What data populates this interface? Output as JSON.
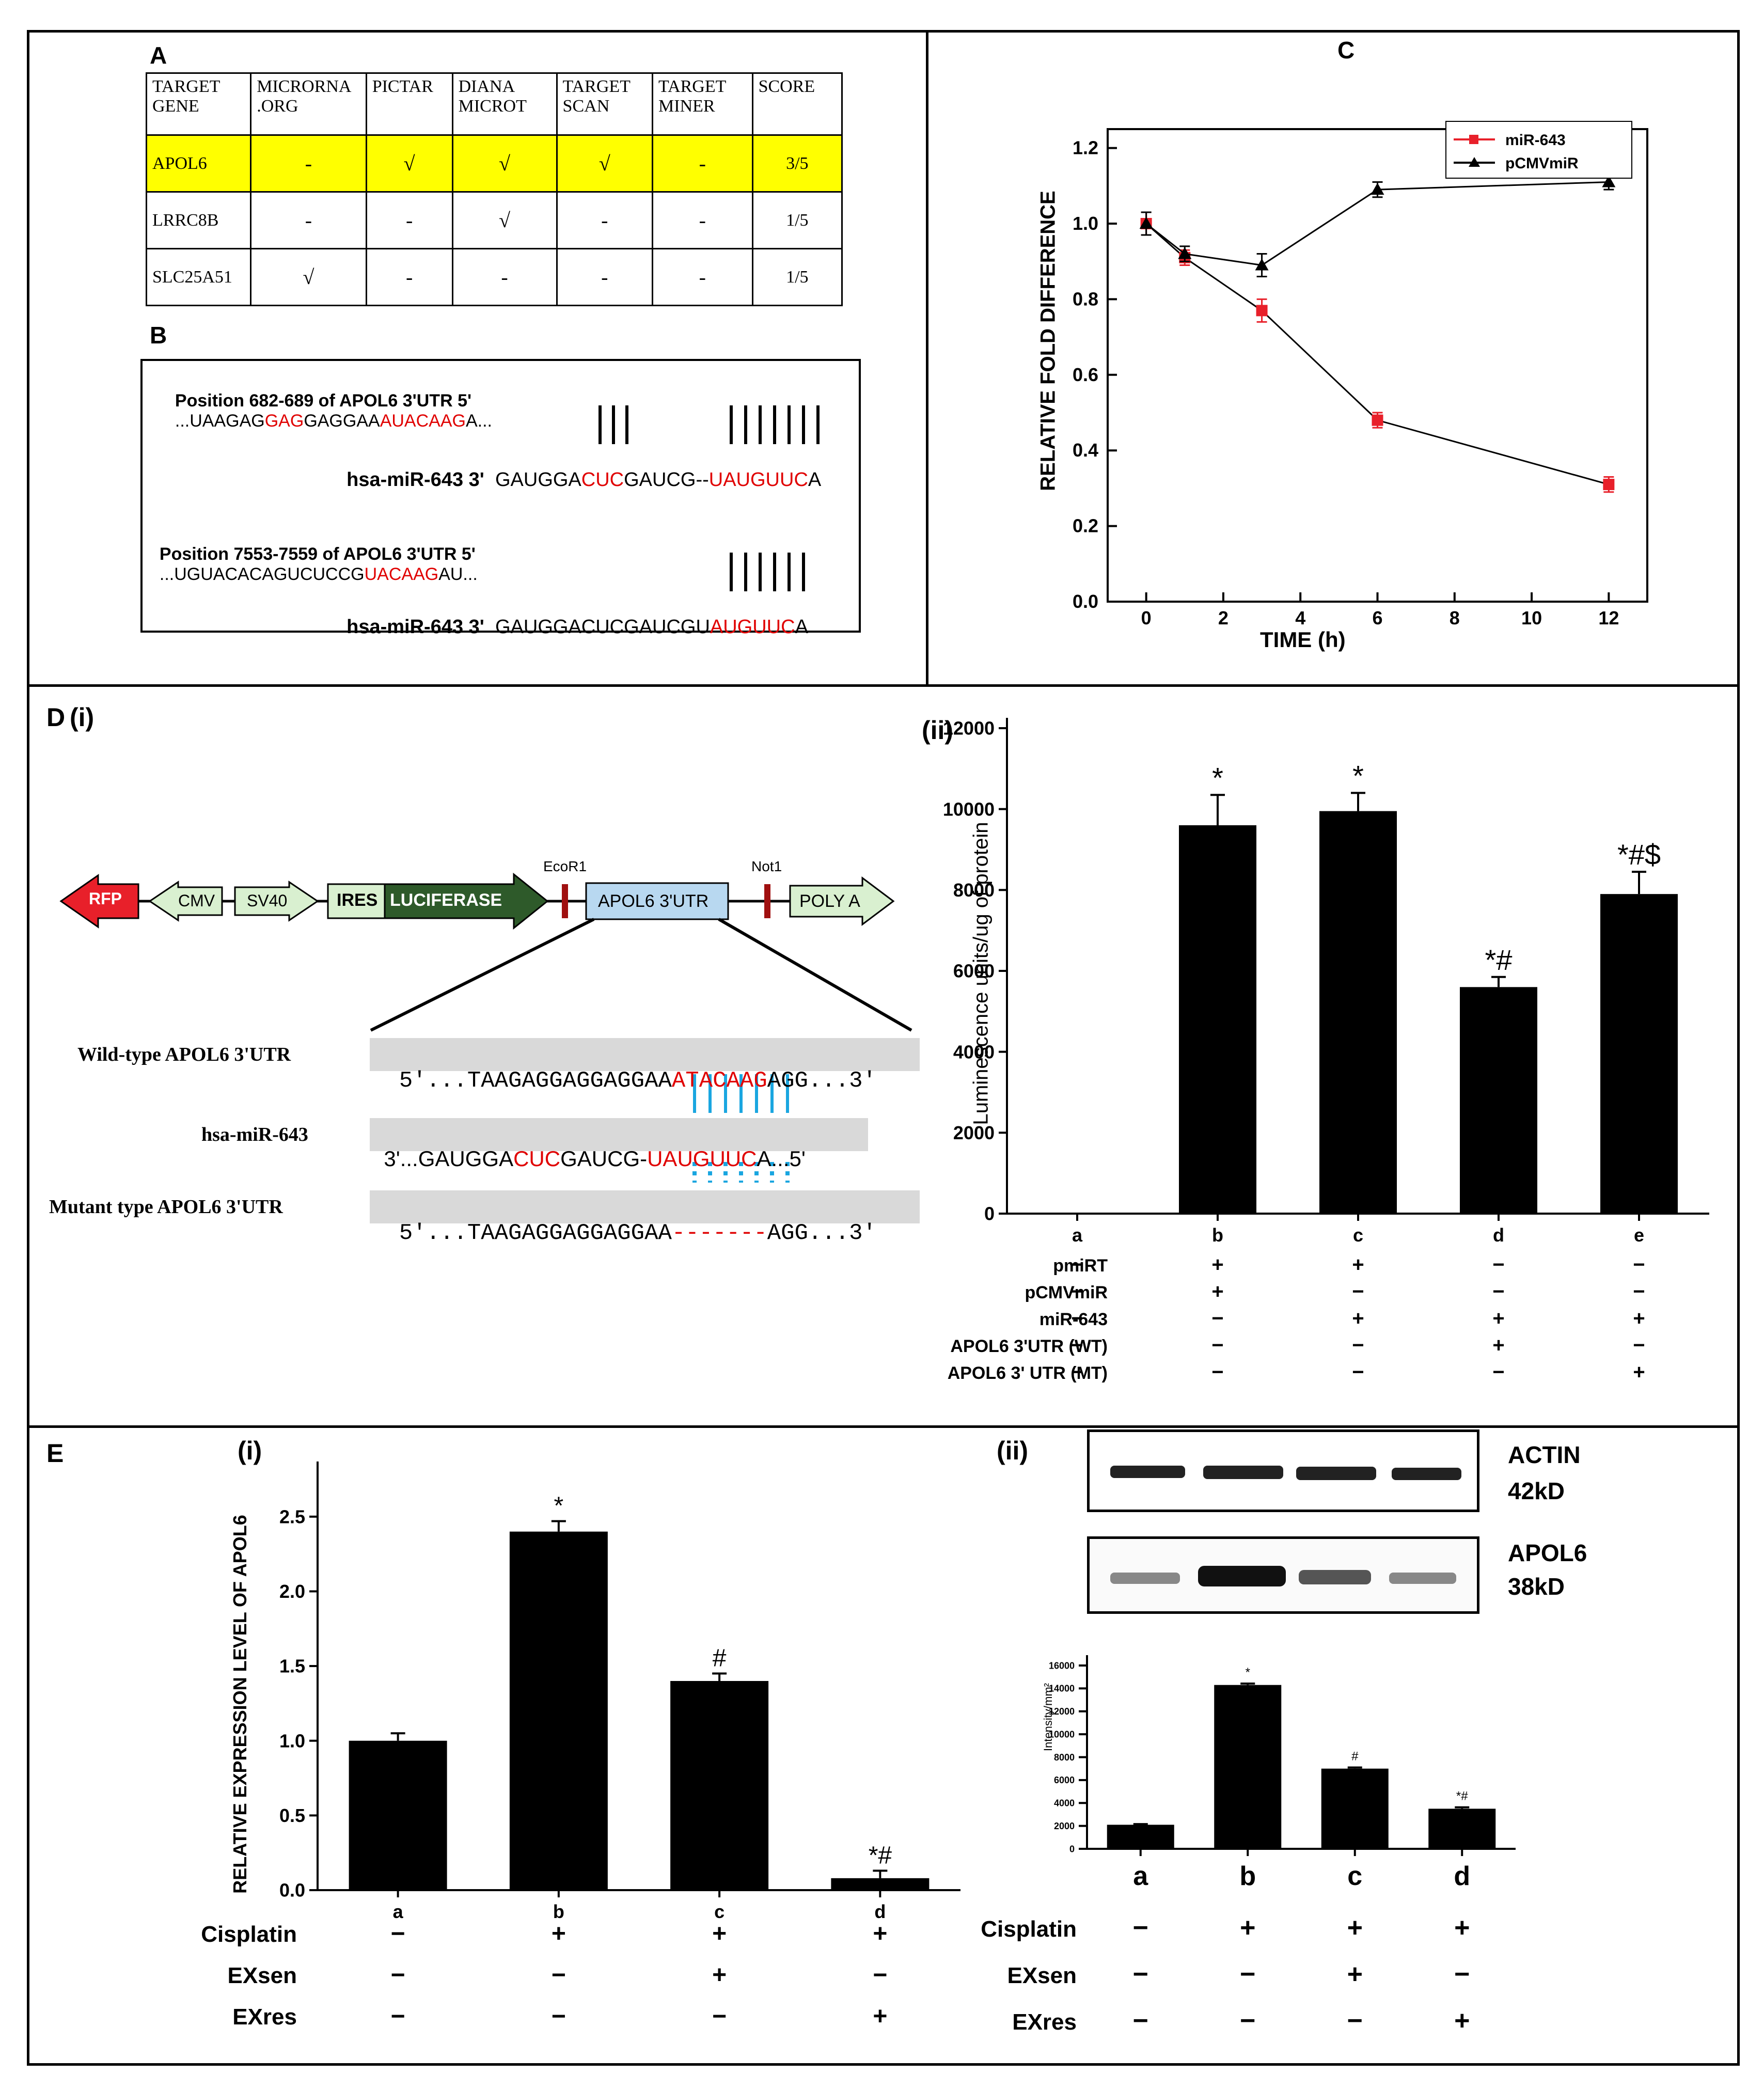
{
  "panel_labels": {
    "A": "A",
    "B": "B",
    "C": "C",
    "D": "D",
    "Di": "(i)",
    "Dii": "(ii)",
    "E": "E",
    "Ei": "(i)",
    "Eii": "(ii)"
  },
  "table_A": {
    "headers": [
      "TARGET GENE",
      "MICRORNA .ORG",
      "PICTAR",
      "DIANA MICROT",
      "TARGET SCAN",
      "TARGET MINER",
      "SCORE"
    ],
    "rows": [
      [
        "APOL6",
        "-",
        "√",
        "√",
        "√",
        "-",
        "3/5"
      ],
      [
        "LRRC8B",
        "-",
        "-",
        "√",
        "-",
        "-",
        "1/5"
      ],
      [
        "SLC25A51",
        "√",
        "-",
        "-",
        "-",
        "-",
        "1/5"
      ]
    ]
  },
  "panel_B": {
    "rows": [
      {
        "prefix": "Position 682-689 of APOL6 3'UTR 5'",
        "seq_parts": [
          "...UAAGAG",
          "GAG",
          "GAGGAA",
          "AUACAAG",
          "A..."
        ]
      },
      {
        "prefix": "hsa-miR-643 3'",
        "seq_parts": [
          "GAUGGA",
          "CUC",
          "GAUCG--",
          "UAUGUUC",
          "A"
        ]
      },
      {
        "prefix": "Position 7553-7559 of APOL6 3'UTR 5'",
        "seq_parts": [
          "...UGUACACAGUCUCCG",
          "UACAAG",
          "AU..."
        ]
      },
      {
        "prefix": "hsa-miR-643 3'",
        "seq_parts": [
          "GAUGGACUCGAUCGU",
          "AUGUUC",
          "A"
        ]
      }
    ]
  },
  "chart_data": [
    {
      "id": "C",
      "type": "line",
      "x": [
        0,
        1,
        3,
        6,
        12
      ],
      "series": [
        {
          "name": "miR-643",
          "values": [
            1.0,
            0.91,
            0.77,
            0.48,
            0.31
          ],
          "errors": [
            0.03,
            0.02,
            0.03,
            0.02,
            0.02
          ],
          "color": "#e8202a"
        },
        {
          "name": "pCMVmiR",
          "values": [
            1.0,
            0.92,
            0.89,
            1.09,
            1.11
          ],
          "errors": [
            0.03,
            0.02,
            0.03,
            0.02,
            0.02
          ],
          "color": "#000000"
        }
      ],
      "xlabel": "TIME (h)",
      "ylabel": "RELATIVE FOLD DIFFERENCE",
      "xlim": [
        -1,
        13
      ],
      "ylim": [
        0,
        1.25
      ],
      "xticks": [
        0,
        2,
        4,
        6,
        8,
        10,
        12
      ],
      "yticks": [
        0.0,
        0.2,
        0.4,
        0.6,
        0.8,
        1.0,
        1.2
      ],
      "legend_position": "top-right"
    },
    {
      "id": "Dii",
      "type": "bar",
      "categories": [
        "a",
        "b",
        "c",
        "d",
        "e"
      ],
      "values": [
        0,
        9600,
        9950,
        5600,
        7900
      ],
      "errors": [
        0,
        750,
        450,
        250,
        550
      ],
      "annotations": [
        "",
        "*",
        "*",
        "*#",
        "*#$"
      ],
      "ylabel": "Luminescence units/ug of protein",
      "ylim": [
        0,
        12000
      ],
      "yticks": [
        0,
        2000,
        4000,
        6000,
        8000,
        10000,
        12000
      ],
      "conditions": [
        {
          "name": "pmiRT",
          "marks": [
            "−",
            "+",
            "+",
            "−",
            "−"
          ]
        },
        {
          "name": "pCMVmiR",
          "marks": [
            "−",
            "+",
            "−",
            "−",
            "−"
          ]
        },
        {
          "name": "miR-643",
          "marks": [
            "−",
            "−",
            "+",
            "+",
            "+"
          ]
        },
        {
          "name": "APOL6 3'UTR (WT)",
          "marks": [
            "−",
            "−",
            "−",
            "+",
            "−"
          ]
        },
        {
          "name": "APOL6 3' UTR (MT)",
          "marks": [
            "−",
            "−",
            "−",
            "−",
            "+"
          ]
        }
      ]
    },
    {
      "id": "Ei",
      "type": "bar",
      "categories": [
        "a",
        "b",
        "c",
        "d"
      ],
      "values": [
        1.0,
        2.4,
        1.4,
        0.08
      ],
      "errors": [
        0.05,
        0.07,
        0.05,
        0.05
      ],
      "annotations": [
        "",
        "*",
        "#",
        "*#"
      ],
      "ylabel": "RELATIVE EXPRESSION LEVEL OF APOL6",
      "ylim": [
        0,
        2.8
      ],
      "yticks": [
        0.0,
        0.5,
        1.0,
        1.5,
        2.0,
        2.5
      ],
      "conditions": [
        {
          "name": "Cisplatin",
          "marks": [
            "−",
            "+",
            "+",
            "+"
          ]
        },
        {
          "name": "EXsen",
          "marks": [
            "−",
            "−",
            "+",
            "−"
          ]
        },
        {
          "name": "EXres",
          "marks": [
            "−",
            "−",
            "−",
            "+"
          ]
        }
      ]
    },
    {
      "id": "Eii",
      "type": "bar",
      "categories": [
        "a",
        "b",
        "c",
        "d"
      ],
      "values": [
        2100,
        14300,
        7000,
        3500
      ],
      "errors": [
        60,
        120,
        100,
        120
      ],
      "annotations": [
        "",
        "*",
        "#",
        "*#"
      ],
      "ylabel": "Intensity/mm²",
      "ylim": [
        0,
        16000
      ],
      "yticks": [
        0,
        2000,
        4000,
        6000,
        8000,
        10000,
        12000,
        14000,
        16000
      ],
      "conditions": [
        {
          "name": "Cisplatin",
          "marks": [
            "−",
            "+",
            "+",
            "+"
          ]
        },
        {
          "name": "EXsen",
          "marks": [
            "−",
            "−",
            "+",
            "−"
          ]
        },
        {
          "name": "EXres",
          "marks": [
            "−",
            "−",
            "−",
            "+"
          ]
        }
      ]
    }
  ],
  "construct_D": {
    "elements": [
      "RFP",
      "CMV",
      "SV40",
      "IRES",
      "LUCIFERASE",
      "APOL6 3'UTR",
      "POLY A"
    ],
    "sites": [
      "EcoR1",
      "Not1"
    ]
  },
  "seq_D": {
    "wild_label": "Wild-type APOL6 3'UTR",
    "wild_parts": [
      "5'...TAAGAGGAGGAGGAA",
      "ATACAAG",
      "AGG...3'"
    ],
    "mir_label": "hsa-miR-643",
    "mir_parts": [
      "3'...GAUGGA",
      "CUC",
      "GAUCG-",
      "UAUGUUC",
      "A...5'"
    ],
    "mut_label": "Mutant type APOL6 3'UTR",
    "mut_parts": [
      "5'...TAAGAGGAGGAGGAA",
      "-------",
      "AGG...3'"
    ]
  },
  "blot": {
    "band1": "ACTIN",
    "band1_kd": "42kD",
    "band2": "APOL6",
    "band2_kd": "38kD"
  }
}
